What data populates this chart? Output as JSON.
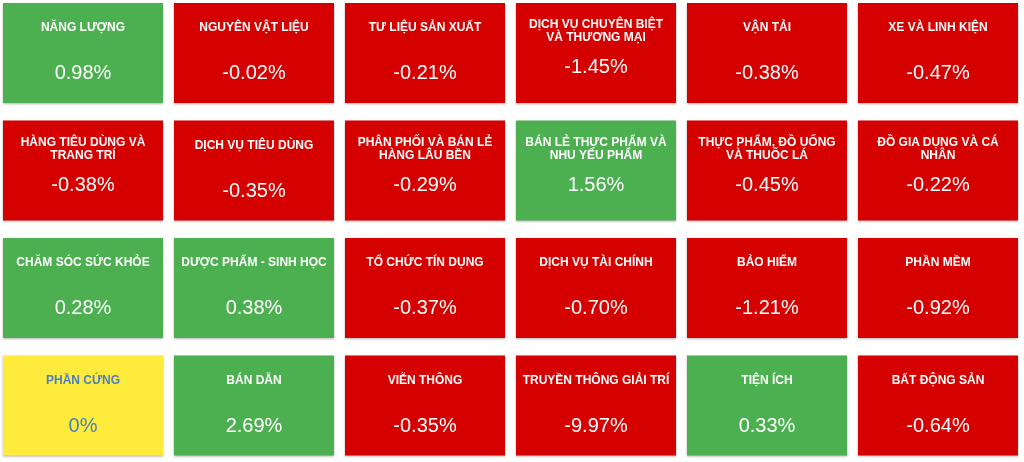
{
  "chart_data": {
    "type": "other",
    "categories": [
      "NĂNG LƯỢNG",
      "NGUYÊN VẬT LIỆU",
      "TƯ LIỆU SẢN XUẤT",
      "DỊCH VỤ CHUYÊN BIỆT VÀ THƯƠNG MẠI",
      "VẬN TẢI",
      "XE VÀ LINH KIỆN",
      "HÀNG TIÊU DÙNG VÀ TRANG TRÍ",
      "DỊCH VỤ TIÊU DÙNG",
      "PHÂN PHỐI VÀ BÁN LẺ HÀNG LÂU BỀN",
      "BÁN LẺ THỰC PHẨM VÀ NHU YẾU PHẨM",
      "THỰC PHẨM, ĐỒ UỐNG VÀ THUỐC LÁ",
      "ĐỒ GIA DỤNG VÀ CÁ NHÂN",
      "CHĂM SÓC SỨC KHỎE",
      "DƯỢC PHẨM - SINH HỌC",
      "TỔ CHỨC TÍN DỤNG",
      "DỊCH VỤ TÀI CHÍNH",
      "BẢO HIỂM",
      "PHẦN MỀM",
      "PHẦN CỨNG",
      "BÁN DẪN",
      "VIỄN THÔNG",
      "TRUYỀN THÔNG GIẢI TRÍ",
      "TIỆN ÍCH",
      "BẤT ĐỘNG SẢN"
    ],
    "values": [
      0.98,
      -0.02,
      -0.21,
      -1.45,
      -0.38,
      -0.47,
      -0.38,
      -0.35,
      -0.29,
      1.56,
      -0.45,
      -0.22,
      0.28,
      0.38,
      -0.37,
      -0.7,
      -1.21,
      -0.92,
      0,
      2.69,
      -0.35,
      -9.97,
      0.33,
      -0.64
    ],
    "value_labels": [
      "0.98%",
      "-0.02%",
      "-0.21%",
      "-1.45%",
      "-0.38%",
      "-0.47%",
      "-0.38%",
      "-0.35%",
      "-0.29%",
      "1.56%",
      "-0.45%",
      "-0.22%",
      "0.28%",
      "0.38%",
      "-0.37%",
      "-0.70%",
      "-1.21%",
      "-0.92%",
      "0%",
      "2.69%",
      "-0.35%",
      "-9.97%",
      "0.33%",
      "-0.64%"
    ],
    "colors": [
      "#4caf50",
      "#d50000",
      "#d50000",
      "#d50000",
      "#d50000",
      "#d50000",
      "#d50000",
      "#d50000",
      "#d50000",
      "#4caf50",
      "#d50000",
      "#d50000",
      "#4caf50",
      "#4caf50",
      "#d50000",
      "#d50000",
      "#d50000",
      "#d50000",
      "#ffeb3b",
      "#4caf50",
      "#d50000",
      "#d50000",
      "#4caf50",
      "#d50000"
    ]
  }
}
